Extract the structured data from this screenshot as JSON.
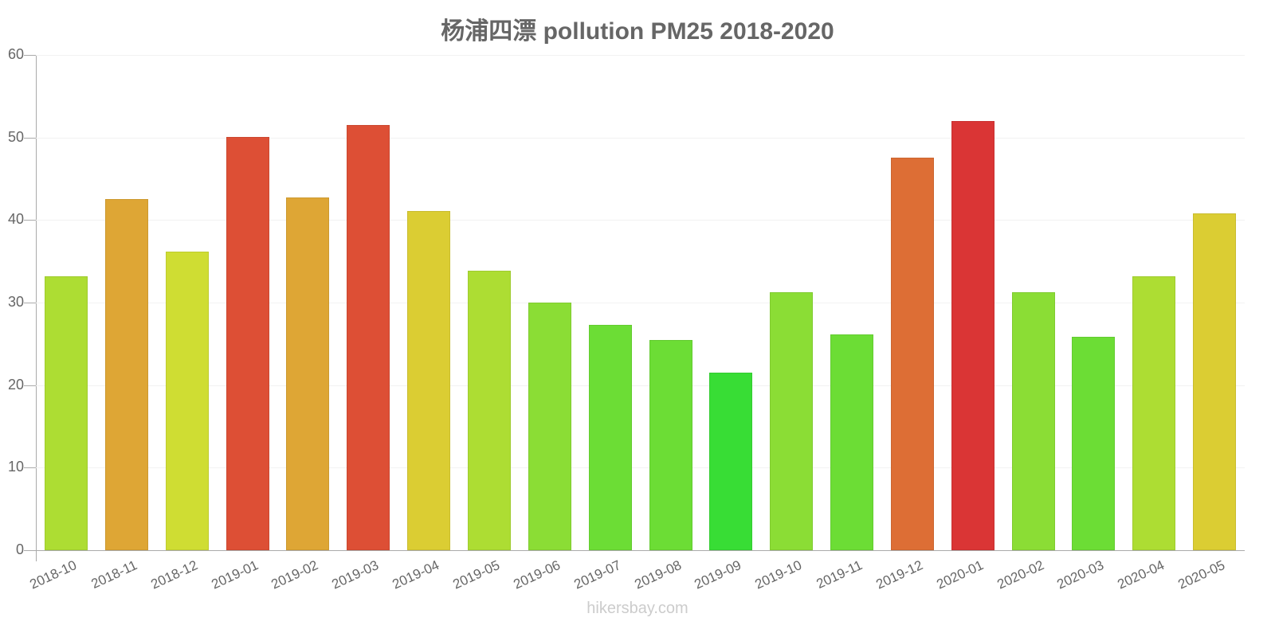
{
  "chart_data": {
    "type": "bar",
    "title": "杨浦四漂 pollution PM25 2018-2020",
    "xlabel": "",
    "ylabel": "",
    "ylim": [
      0,
      60
    ],
    "yticks": [
      0,
      10,
      20,
      30,
      40,
      50,
      60
    ],
    "grid": true,
    "legend": null,
    "categories": [
      "2018-10",
      "2018-11",
      "2018-12",
      "2019-01",
      "2019-02",
      "2019-03",
      "2019-04",
      "2019-05",
      "2019-06",
      "2019-07",
      "2019-08",
      "2019-09",
      "2019-10",
      "2019-11",
      "2019-12",
      "2020-01",
      "2020-02",
      "2020-03",
      "2020-04",
      "2020-05"
    ],
    "values": [
      33.2,
      42.5,
      36.2,
      50.1,
      42.7,
      51.5,
      41.1,
      33.9,
      30.0,
      27.3,
      25.5,
      21.5,
      31.3,
      26.1,
      47.6,
      52.0,
      31.3,
      25.9,
      33.2,
      40.8
    ],
    "colors": [
      "#addd33",
      "#dea635",
      "#cfdd33",
      "#dd4f35",
      "#dea635",
      "#dd4f35",
      "#dbcd33",
      "#addd33",
      "#8bdd35",
      "#6cdd35",
      "#6cdd35",
      "#38dd35",
      "#8bdd35",
      "#6cdd35",
      "#dd6e35",
      "#da3535",
      "#8bdd35",
      "#6cdd35",
      "#addd33",
      "#dbcd33"
    ]
  },
  "footer": {
    "watermark": "hikersbay.com"
  }
}
